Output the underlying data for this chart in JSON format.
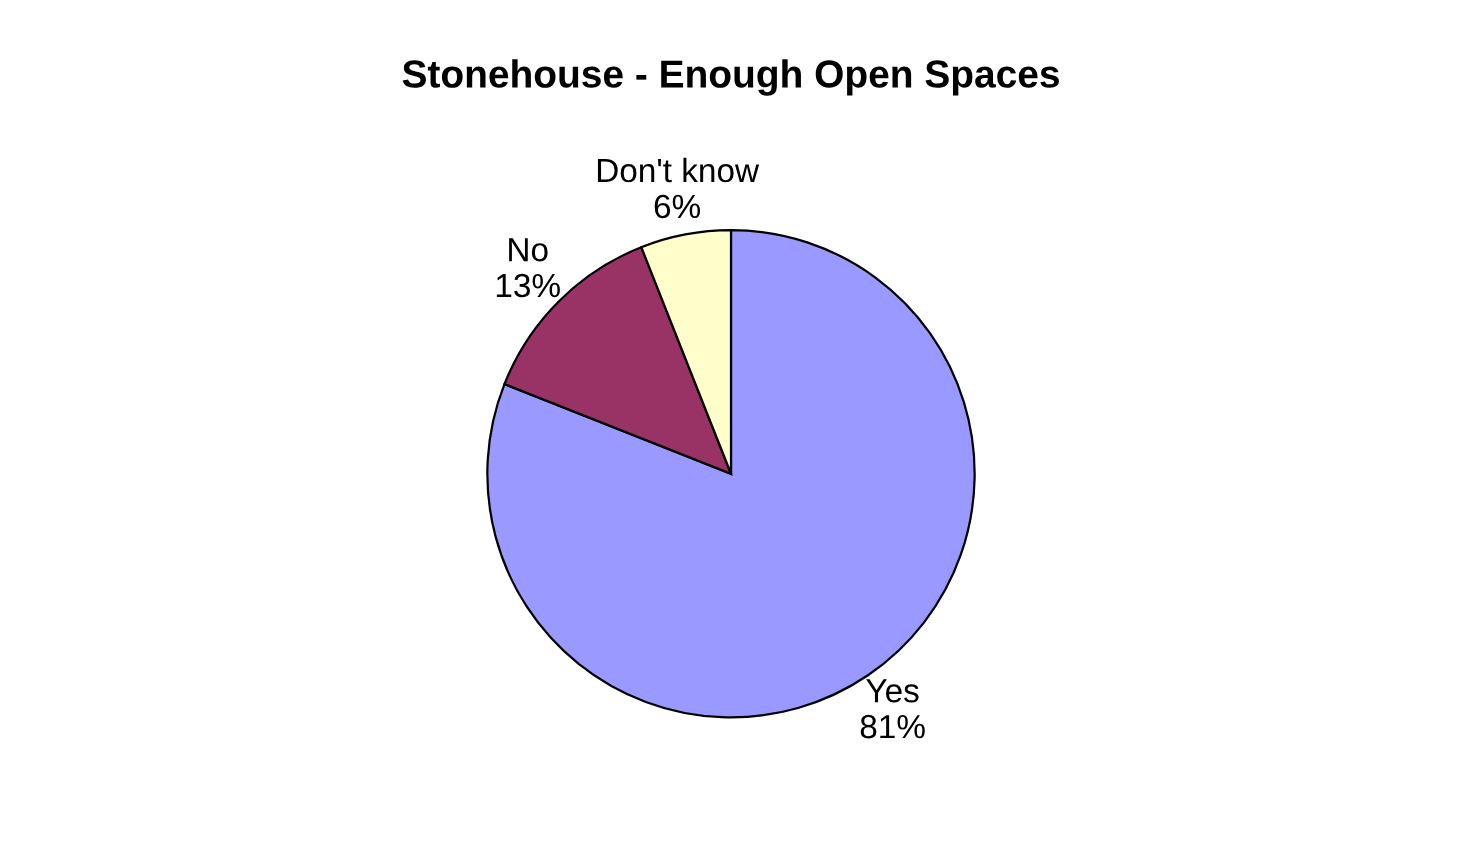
{
  "chart_data": {
    "type": "pie",
    "title": "Stonehouse - Enough Open Spaces",
    "categories": [
      "Yes",
      "No",
      "Don't know"
    ],
    "values": [
      81,
      13,
      6
    ],
    "value_labels": [
      "81%",
      "13%",
      "6%"
    ],
    "colors": [
      "#9999ff",
      "#993366",
      "#ffffcc"
    ],
    "legend": false
  }
}
